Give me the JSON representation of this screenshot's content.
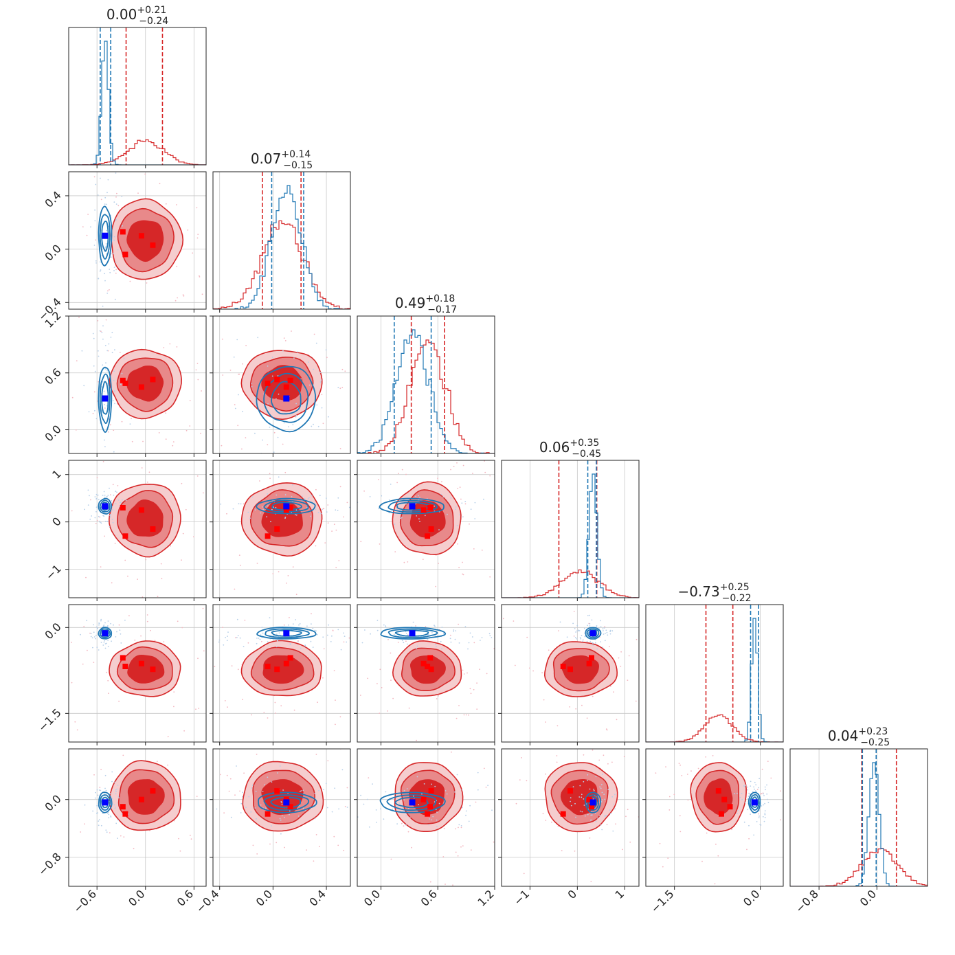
{
  "colors": {
    "red": "#d62728",
    "red_mid": "#e8898a",
    "red_light": "#f5cdce",
    "blue": "#1f77b4",
    "marker_blue": "#0000ff",
    "marker_red": "#ff0000"
  },
  "chart_data": {
    "type": "corner",
    "grid": true,
    "titles": [
      {
        "median": "0.00",
        "plus": "+0.21",
        "minus": "−0.24"
      },
      {
        "median": "0.07",
        "plus": "+0.14",
        "minus": "−0.15"
      },
      {
        "median": "0.49",
        "plus": "+0.18",
        "minus": "−0.17"
      },
      {
        "median": "0.06",
        "plus": "+0.35",
        "minus": "−0.45"
      },
      {
        "median": "−0.73",
        "plus": "+0.25",
        "minus": "−0.22"
      },
      {
        "median": "0.04",
        "plus": "+0.23",
        "minus": "−0.25"
      }
    ],
    "params": [
      {
        "range": [
          -0.95,
          0.75
        ],
        "ticks": [
          -0.6,
          0.0,
          0.6
        ],
        "tick_labels": [
          "−0.6",
          "0.0",
          "0.6"
        ]
      },
      {
        "range": [
          -0.45,
          0.58
        ],
        "ticks": [
          -0.4,
          0.0,
          0.4
        ],
        "tick_labels": [
          "−0.4",
          "0.0",
          "0.4"
        ]
      },
      {
        "range": [
          -0.25,
          1.2
        ],
        "ticks": [
          0.0,
          0.6,
          1.2
        ],
        "tick_labels": [
          "0.0",
          "0.6",
          "1.2"
        ]
      },
      {
        "range": [
          -1.6,
          1.3
        ],
        "ticks": [
          -1,
          0,
          1
        ],
        "tick_labels": [
          "−1",
          "0",
          "1"
        ]
      },
      {
        "range": [
          -2.0,
          0.4
        ],
        "ticks": [
          -1.5,
          0.0
        ],
        "tick_labels": [
          "−1.5",
          "0.0"
        ]
      },
      {
        "range": [
          -1.2,
          0.7
        ],
        "ticks": [
          -0.8,
          0.0
        ],
        "tick_labels": [
          "−0.8",
          "0.0"
        ]
      }
    ],
    "series": [
      {
        "color": "#d62728",
        "style": "filled",
        "means": [
          0.0,
          0.07,
          0.49,
          0.06,
          -0.73,
          0.04
        ],
        "sds": [
          0.22,
          0.15,
          0.18,
          0.38,
          0.24,
          0.24
        ],
        "quantile_lines": [
          [
            -0.24,
            0.21
          ],
          [
            -0.08,
            0.21
          ],
          [
            0.32,
            0.67
          ],
          [
            -0.39,
            0.41
          ],
          [
            -0.95,
            -0.48
          ],
          [
            -0.21,
            0.27
          ]
        ]
      },
      {
        "color": "#1f77b4",
        "style": "contour",
        "means": [
          -0.5,
          0.1,
          0.33,
          0.33,
          -0.1,
          -0.04
        ],
        "sds": [
          0.04,
          0.11,
          0.17,
          0.08,
          0.05,
          0.07
        ],
        "quantile_lines": [
          [
            -0.56,
            -0.43
          ],
          [
            -0.01,
            0.23
          ],
          [
            0.14,
            0.53
          ],
          [
            0.22,
            0.4
          ],
          [
            -0.17,
            -0.03
          ],
          [
            -0.2,
            -0.01
          ]
        ]
      }
    ],
    "markers_blue": [
      [
        -0.5,
        0.1,
        0.33,
        0.33,
        -0.1,
        -0.04
      ]
    ],
    "markers_red": [
      [
        -0.28,
        0.13,
        0.52,
        0.3,
        -0.53,
        -0.1
      ],
      [
        -0.05,
        0.1,
        0.45,
        0.25,
        -0.63,
        0.0
      ],
      [
        0.09,
        0.03,
        0.53,
        -0.15,
        -0.73,
        0.12
      ],
      [
        -0.25,
        -0.04,
        0.49,
        -0.3,
        -0.68,
        -0.2
      ]
    ]
  }
}
